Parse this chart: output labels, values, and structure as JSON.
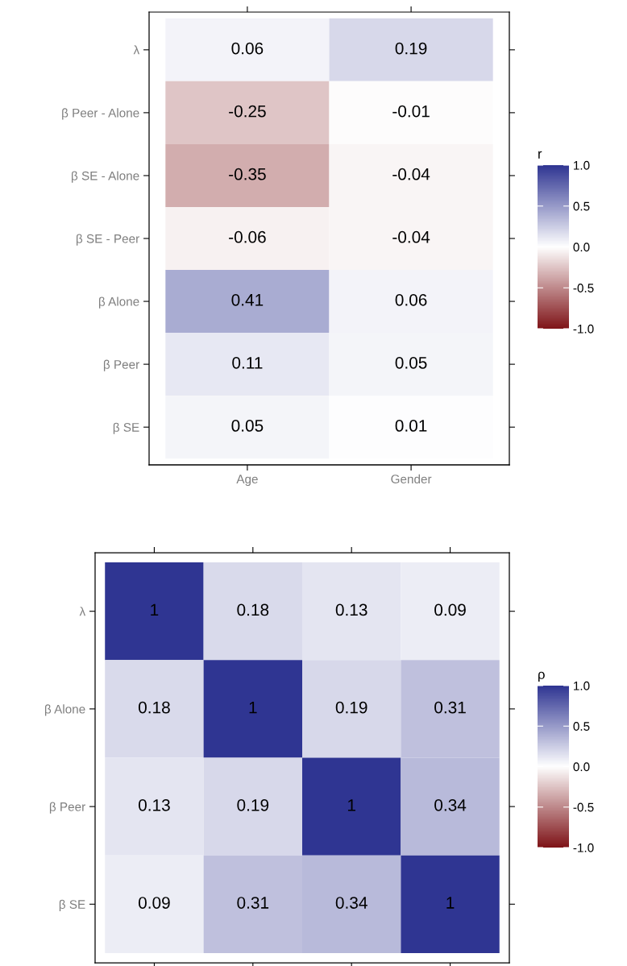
{
  "chart_data": [
    {
      "type": "heatmap",
      "categories": [
        "Age",
        "Gender"
      ],
      "y_categories": [
        "λ",
        "β Peer - Alone",
        "β SE - Alone",
        "β SE - Peer",
        "β Alone",
        "β Peer",
        "β SE"
      ],
      "cells": [
        [
          0.06,
          0.19
        ],
        [
          -0.25,
          -0.01
        ],
        [
          -0.35,
          -0.04
        ],
        [
          -0.06,
          -0.04
        ],
        [
          0.41,
          0.06
        ],
        [
          0.11,
          0.05
        ],
        [
          0.05,
          0.01
        ]
      ],
      "data_labels": true,
      "clabel": "r",
      "clim": [
        -1,
        1
      ],
      "colors": [
        "#7f1418",
        "#ffffff",
        "#2f3592"
      ],
      "cticks": [
        {
          "value": 1,
          "label": "1.0"
        },
        {
          "value": 0.5,
          "label": "0.5"
        },
        {
          "value": 0,
          "label": "0.0"
        },
        {
          "value": -0.5,
          "label": "-0.5"
        },
        {
          "value": -1,
          "label": "-1.0"
        }
      ]
    },
    {
      "type": "heatmap",
      "categories": [
        null,
        null,
        null,
        null
      ],
      "y_categories": [
        "λ",
        "β Alone",
        "β Peer",
        "β SE"
      ],
      "cells": [
        [
          1,
          0.18,
          0.13,
          0.09
        ],
        [
          0.18,
          1,
          0.19,
          0.31
        ],
        [
          0.13,
          0.19,
          1,
          0.34
        ],
        [
          0.09,
          0.31,
          0.34,
          1
        ]
      ],
      "data_labels": true,
      "clabel": "ρ",
      "clim": [
        -1,
        1
      ],
      "tick_labels": "y",
      "colors": [
        "#7f1418",
        "#ffffff",
        "#2f3592"
      ],
      "cticks": [
        {
          "value": 1,
          "label": "1.0"
        },
        {
          "value": 0.5,
          "label": "0.5"
        },
        {
          "value": 0,
          "label": "0.0"
        },
        {
          "value": -0.5,
          "label": "-0.5"
        },
        {
          "value": -1,
          "label": "-1.0"
        }
      ]
    }
  ]
}
